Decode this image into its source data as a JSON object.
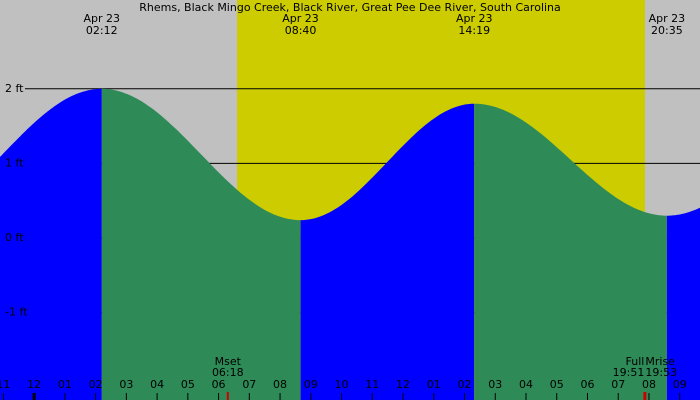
{
  "chart_data": {
    "type": "tide",
    "title": "Rhems, Black Mingo Creek, Black River, Great Pee Dee River, South Carolina",
    "tides": [
      {
        "date": "Apr 23",
        "time": "02:12",
        "height": 2.0
      },
      {
        "date": "Apr 23",
        "time": "08:40",
        "height": 0.24
      },
      {
        "date": "Apr 23",
        "time": "14:19",
        "height": 1.8
      },
      {
        "date": "Apr 23",
        "time": "20:35",
        "height": 0.3
      }
    ],
    "moon_events": [
      {
        "label": "Mset",
        "time": "06:18"
      },
      {
        "label": "Full",
        "time": "19:51"
      },
      {
        "label": "Mrise",
        "time": "19:53"
      }
    ],
    "daylight": [
      6.6,
      19.87
    ],
    "xlim": [
      -1.11,
      21.66
    ],
    "xticks": [
      {
        "value": -1,
        "label": "11"
      },
      {
        "value": 0,
        "label": "12"
      },
      {
        "value": 1,
        "label": "01"
      },
      {
        "value": 2,
        "label": "02"
      },
      {
        "value": 3,
        "label": "03"
      },
      {
        "value": 4,
        "label": "04"
      },
      {
        "value": 5,
        "label": "05"
      },
      {
        "value": 6,
        "label": "06"
      },
      {
        "value": 7,
        "label": "07"
      },
      {
        "value": 8,
        "label": "08"
      },
      {
        "value": 9,
        "label": "09"
      },
      {
        "value": 10,
        "label": "10"
      },
      {
        "value": 11,
        "label": "11"
      },
      {
        "value": 12,
        "label": "12"
      },
      {
        "value": 13,
        "label": "01"
      },
      {
        "value": 14,
        "label": "02"
      },
      {
        "value": 15,
        "label": "03"
      },
      {
        "value": 16,
        "label": "04"
      },
      {
        "value": 17,
        "label": "05"
      },
      {
        "value": 18,
        "label": "06"
      },
      {
        "value": 19,
        "label": "07"
      },
      {
        "value": 20,
        "label": "08"
      },
      {
        "value": 21,
        "label": "09"
      }
    ],
    "ylim": [
      -2.17,
      3.19
    ],
    "yticks": [
      {
        "value": 2,
        "label": "2 ft"
      },
      {
        "value": 1,
        "label": "1 ft"
      },
      {
        "value": 0,
        "label": "0 ft"
      },
      {
        "value": -1,
        "label": "-1 ft"
      }
    ],
    "colors": {
      "night": "#c0c0c0",
      "day": "#cccc00",
      "rising": "#0000ff",
      "falling": "#2e8b57",
      "moon": "#cc0000"
    }
  }
}
